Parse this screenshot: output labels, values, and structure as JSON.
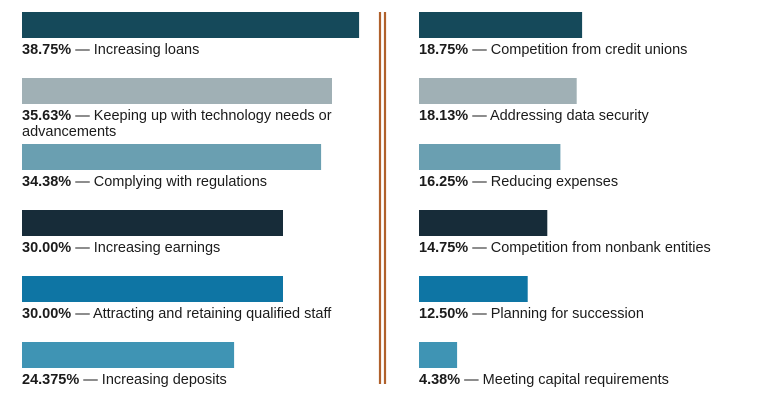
{
  "chart_data": {
    "type": "bar",
    "orientation": "horizontal",
    "grid": false,
    "columns": [
      {
        "items": [
          {
            "value": 38.75,
            "value_label": "38.75%",
            "label": "Increasing loans",
            "color": "#15495a"
          },
          {
            "value": 35.63,
            "value_label": "35.63%",
            "label": "Keeping up with technology needs or advancements",
            "label_lines": [
              "Keeping up with technology needs or",
              "advancements"
            ],
            "color": "#a0b0b5"
          },
          {
            "value": 34.38,
            "value_label": "34.38%",
            "label": "Complying with regulations",
            "color": "#6a9fb1"
          },
          {
            "value": 30.0,
            "value_label": "30.00%",
            "label": "Increasing earnings",
            "color": "#172c39"
          },
          {
            "value": 30.0,
            "value_label": "30.00%",
            "label": "Attracting and retaining qualified staff",
            "color": "#0e75a4"
          },
          {
            "value": 24.375,
            "value_label": "24.375%",
            "label": "Increasing deposits",
            "color": "#3f94b4"
          }
        ]
      },
      {
        "items": [
          {
            "value": 18.75,
            "value_label": "18.75%",
            "label": "Competition from credit unions",
            "color": "#15495a"
          },
          {
            "value": 18.13,
            "value_label": "18.13%",
            "label": "Addressing data security",
            "color": "#a0b0b5"
          },
          {
            "value": 16.25,
            "value_label": "16.25%",
            "label": "Reducing expenses",
            "color": "#6a9fb1"
          },
          {
            "value": 14.75,
            "value_label": "14.75%",
            "label": "Competition from nonbank entities",
            "color": "#172c39"
          },
          {
            "value": 12.5,
            "value_label": "12.50%",
            "label": "Planning for succession",
            "color": "#0e75a4"
          },
          {
            "value": 4.38,
            "value_label": "4.38%",
            "label": "Meeting capital requirements",
            "color": "#3f94b4"
          }
        ]
      }
    ],
    "separator_color": "#b0612c"
  }
}
